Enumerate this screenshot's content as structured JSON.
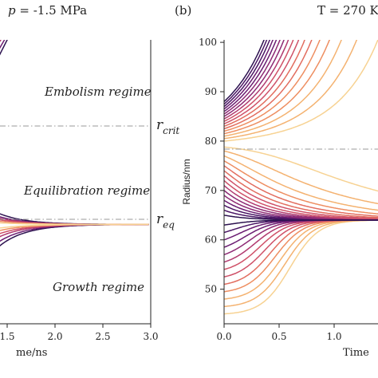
{
  "panels": {
    "left": {
      "title": "p = -1.5 MPa",
      "title_italic": "p",
      "title_rest": " = -1.5 MPa",
      "xlabel_visible": "me/ns",
      "xtick_labels": [
        "1.5",
        "2.0",
        "2.5",
        "3.0"
      ],
      "annotations": {
        "embolism": "Embolism regime",
        "equilibration": "Equilibration regime",
        "growth": "Growth regime",
        "r_crit_base": "r",
        "r_crit_sub": "crit",
        "r_eq_base": "r",
        "r_eq_sub": "eq"
      }
    },
    "right": {
      "label": "(b)",
      "title": "T = 270 K",
      "xlabel_visible": "Time",
      "ylabel": "Radius/nm",
      "xtick_labels": [
        "0.0",
        "0.5",
        "1.0",
        "1.5"
      ],
      "ytick_labels": [
        "50",
        "60",
        "70",
        "80",
        "90",
        "100"
      ]
    }
  },
  "colors": [
    "#2d1250",
    "#4a1565",
    "#6b1d72",
    "#8e2a74",
    "#b13a6f",
    "#cf5168",
    "#e26d5f",
    "#ee8e61",
    "#f4b270",
    "#f7d292"
  ],
  "chart_data": [
    {
      "type": "line",
      "panel": "left",
      "title": "p = -1.5 MPa",
      "xlabel": "me/ns",
      "ylabel": "",
      "xlim": [
        1.3,
        3.0
      ],
      "ylim": [
        43,
        103
      ],
      "r_crit": 79,
      "r_eq": 64,
      "grid": false,
      "series_families": {
        "embolism": {
          "start_x": 1.3,
          "start_values": [
            95,
            97,
            99,
            101,
            103,
            105
          ],
          "growth_rate_nm_per_ns": [
            40,
            35,
            30,
            25,
            18,
            14
          ]
        },
        "equilibration": {
          "values_at_1_5": [
            67.5,
            66.5,
            66.0,
            65.5,
            65.0,
            64.5
          ],
          "converge_to": 64
        },
        "growth": {
          "values_at_1_5": [
            57,
            58.5,
            60,
            61,
            62,
            62.8
          ],
          "converge_to": 64
        }
      }
    },
    {
      "type": "line",
      "panel": "right",
      "title": "T = 270 K",
      "xlabel": "Time",
      "ylabel": "Radius/nm",
      "xlim": [
        0.0,
        1.75
      ],
      "ylim": [
        43,
        100.5
      ],
      "r_crit": 79,
      "r_eq": 64,
      "grid": false,
      "initial_radii": {
        "embolism": [
          80,
          80.5,
          81,
          81.5,
          82,
          82.5,
          83,
          83.5,
          84,
          84.5,
          85,
          85.5,
          86,
          86.5,
          87,
          87.5,
          88
        ],
        "shrinking": [
          65,
          66,
          67,
          68,
          69,
          70,
          71,
          72,
          73,
          74,
          75,
          76,
          77,
          78,
          78.8
        ],
        "growing": [
          45,
          46.5,
          48,
          49.5,
          51,
          52.5,
          54,
          55.5,
          57,
          58.5,
          60,
          61.5,
          63
        ]
      },
      "equilibrium_radius": 64
    }
  ]
}
